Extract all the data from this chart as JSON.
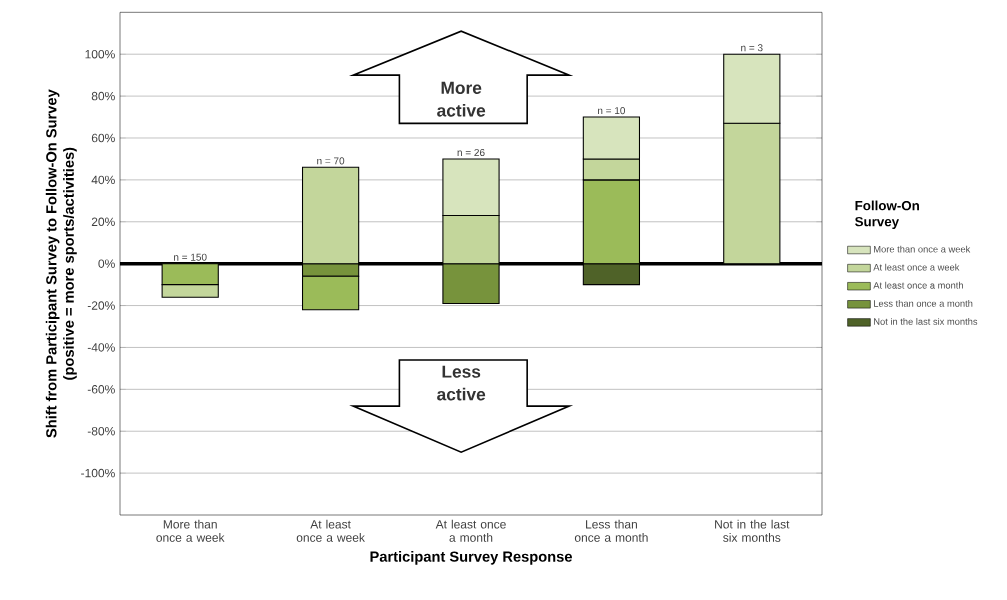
{
  "chart_data": {
    "type": "bar",
    "stacked": true,
    "xlabel": "Participant Survey Response",
    "ylabel": "Shift from Participant Survey to Follow-On Survey (positive = more sports/activities)",
    "legend_title": "Follow-On Survey",
    "categories": [
      "More than once a week",
      "At least once a week",
      "At least once a month",
      "Less than once a month",
      "Not in the last six months"
    ],
    "series": [
      {
        "name": "Not in the last six months",
        "color": "#4f6228",
        "values": [
          0,
          0,
          0,
          -10,
          0
        ]
      },
      {
        "name": "Less than once a month",
        "color": "#77933c",
        "values": [
          0,
          -6,
          -19,
          0,
          0
        ]
      },
      {
        "name": "At least once a month",
        "color": "#9bbb59",
        "values": [
          -10,
          -16,
          0,
          40,
          0
        ]
      },
      {
        "name": "At least once a week",
        "color": "#c3d69b",
        "values": [
          -6,
          46,
          23,
          10,
          67
        ]
      },
      {
        "name": "More than once a week",
        "color": "#d7e4bd",
        "values": [
          0,
          0,
          27,
          20,
          33
        ]
      }
    ],
    "ylim": [
      -120,
      120
    ],
    "yticks": [
      {
        "value": -100,
        "label": "-100%"
      },
      {
        "value": -80,
        "label": "-80%"
      },
      {
        "value": -60,
        "label": "-60%"
      },
      {
        "value": -40,
        "label": "-40%"
      },
      {
        "value": -20,
        "label": "-20%"
      },
      {
        "value": 0,
        "label": "0%"
      },
      {
        "value": 20,
        "label": "20%"
      },
      {
        "value": 40,
        "label": "40%"
      },
      {
        "value": 60,
        "label": "60%"
      },
      {
        "value": 80,
        "label": "80%"
      },
      {
        "value": 100,
        "label": "100%"
      }
    ],
    "grid": "y",
    "legend": "right",
    "annotations": [
      "More active",
      "Less active",
      {
        "text": "n = 150",
        "x": "More than once a week",
        "y": 0
      },
      {
        "text": "n = 70",
        "x": "At least once a week",
        "y": 46
      },
      {
        "text": "n = 26",
        "x": "At least once a month",
        "y": 50
      },
      {
        "text": "n = 10",
        "x": "Less than once a month",
        "y": 70
      },
      {
        "text": "n = 3",
        "x": "Not in the last six months",
        "y": 100
      }
    ]
  }
}
